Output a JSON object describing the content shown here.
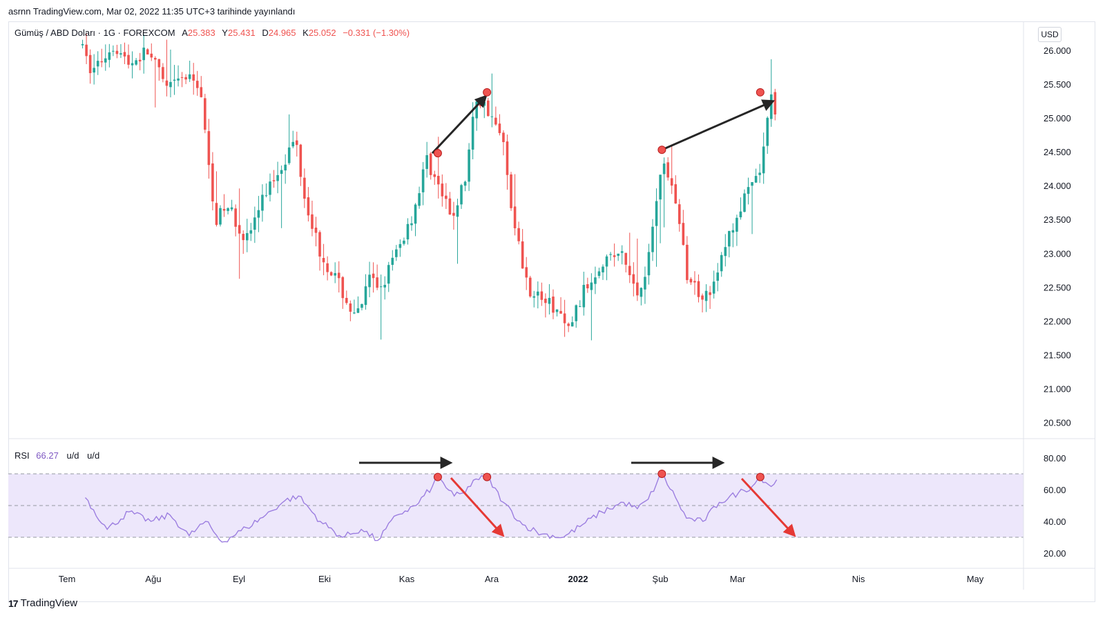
{
  "header": {
    "published": "asrnn TradingView.com, Mar 02, 2022 11:35 UTC+3 tarihinde yayınlandı"
  },
  "legend": {
    "symbol": "Gümüş / ABD Doları · 1G · FOREXCOM",
    "o_label": "A",
    "o_val": "25.383",
    "h_label": "Y",
    "h_val": "25.431",
    "l_label": "D",
    "l_val": "24.965",
    "c_label": "K",
    "c_val": "25.052",
    "change": "−0.331 (−1.30%)"
  },
  "currency": "USD",
  "rsi_legend": {
    "name": "RSI",
    "value": "66.27",
    "na1": "u/d",
    "na2": "u/d"
  },
  "footer": {
    "brand": "TradingView",
    "logo": "17"
  },
  "colors": {
    "up": "#26a69a",
    "down": "#ef5350",
    "rsi": "#9c7ee0",
    "band": "#ede7fb",
    "arrow_black": "#262626",
    "arrow_red": "#e53935"
  },
  "chart_data": [
    {
      "type": "candlestick",
      "series_name": "Gümüş / ABD Doları",
      "ylim": [
        20.25,
        26.4
      ],
      "y_ticks": [
        "26.000",
        "25.500",
        "25.000",
        "24.500",
        "24.000",
        "23.500",
        "23.000",
        "22.500",
        "22.000",
        "21.500",
        "21.000",
        "20.500"
      ],
      "x_ticks": [
        "Tem",
        "Ağu",
        "Eyl",
        "Eki",
        "Kas",
        "Ara",
        "2022",
        "Şub",
        "Mar",
        "Nis",
        "May"
      ],
      "close_path": [
        [
          "2021-06-21",
          26.0
        ],
        [
          "2021-06-24",
          25.7
        ],
        [
          "2021-06-29",
          25.9
        ],
        [
          "2021-07-02",
          26.1
        ],
        [
          "2021-07-08",
          25.8
        ],
        [
          "2021-07-15",
          26.0
        ],
        [
          "2021-07-22",
          25.4
        ],
        [
          "2021-07-28",
          25.6
        ],
        [
          "2021-08-03",
          25.5
        ],
        [
          "2021-08-06",
          24.3
        ],
        [
          "2021-08-09",
          23.5
        ],
        [
          "2021-08-13",
          23.7
        ],
        [
          "2021-08-20",
          23.2
        ],
        [
          "2021-08-27",
          23.9
        ],
        [
          "2021-09-03",
          24.4
        ],
        [
          "2021-09-07",
          24.7
        ],
        [
          "2021-09-10",
          23.9
        ],
        [
          "2021-09-16",
          23.0
        ],
        [
          "2021-09-22",
          22.6
        ],
        [
          "2021-09-29",
          22.0
        ],
        [
          "2021-10-04",
          22.6
        ],
        [
          "2021-10-08",
          22.5
        ],
        [
          "2021-10-15",
          23.1
        ],
        [
          "2021-10-20",
          23.6
        ],
        [
          "2021-10-25",
          24.4
        ],
        [
          "2021-10-29",
          24.0
        ],
        [
          "2021-11-03",
          23.5
        ],
        [
          "2021-11-08",
          24.1
        ],
        [
          "2021-11-12",
          25.3
        ],
        [
          "2021-11-17",
          25.1
        ],
        [
          "2021-11-22",
          24.6
        ],
        [
          "2021-11-26",
          23.4
        ],
        [
          "2021-12-01",
          22.5
        ],
        [
          "2021-12-07",
          22.3
        ],
        [
          "2021-12-13",
          22.1
        ],
        [
          "2021-12-15",
          21.8
        ],
        [
          "2021-12-21",
          22.4
        ],
        [
          "2021-12-28",
          22.9
        ],
        [
          "2022-01-04",
          23.0
        ],
        [
          "2022-01-10",
          22.4
        ],
        [
          "2022-01-14",
          22.9
        ],
        [
          "2022-01-19",
          24.4
        ],
        [
          "2022-01-24",
          23.8
        ],
        [
          "2022-01-28",
          22.7
        ],
        [
          "2022-02-02",
          22.4
        ],
        [
          "2022-02-07",
          22.5
        ],
        [
          "2022-02-11",
          23.1
        ],
        [
          "2022-02-16",
          23.6
        ],
        [
          "2022-02-21",
          24.0
        ],
        [
          "2022-02-24",
          24.2
        ],
        [
          "2022-02-28",
          25.3
        ],
        [
          "2022-03-02",
          25.05
        ]
      ],
      "last_candle": {
        "date": "2022-03-02",
        "open": 25.383,
        "high": 25.431,
        "low": 24.965,
        "close": 25.052
      },
      "marked_highs": [
        {
          "date": "2021-10-29",
          "price": 24.48
        },
        {
          "date": "2021-11-16",
          "price": 25.38
        },
        {
          "date": "2022-01-19",
          "price": 24.53
        },
        {
          "date": "2022-02-24",
          "price": 25.38
        }
      ]
    },
    {
      "type": "line",
      "series_name": "RSI",
      "last_value": 66.27,
      "ylim": [
        10,
        88
      ],
      "y_ticks": [
        "80.00",
        "60.00",
        "40.00",
        "20.00"
      ],
      "bands": [
        30,
        50,
        70
      ],
      "points": [
        [
          "2021-06-22",
          55
        ],
        [
          "2021-06-30",
          35
        ],
        [
          "2021-07-08",
          46
        ],
        [
          "2021-07-16",
          40
        ],
        [
          "2021-07-23",
          44
        ],
        [
          "2021-07-30",
          31
        ],
        [
          "2021-08-05",
          40
        ],
        [
          "2021-08-11",
          27
        ],
        [
          "2021-08-20",
          36
        ],
        [
          "2021-08-27",
          44
        ],
        [
          "2021-09-03",
          53
        ],
        [
          "2021-09-08",
          56
        ],
        [
          "2021-09-16",
          40
        ],
        [
          "2021-09-24",
          30
        ],
        [
          "2021-10-01",
          35
        ],
        [
          "2021-10-07",
          28
        ],
        [
          "2021-10-14",
          44
        ],
        [
          "2021-10-21",
          50
        ],
        [
          "2021-10-27",
          62
        ],
        [
          "2021-10-29",
          68
        ],
        [
          "2021-11-04",
          56
        ],
        [
          "2021-11-08",
          58
        ],
        [
          "2021-11-11",
          66
        ],
        [
          "2021-11-16",
          68
        ],
        [
          "2021-11-22",
          52
        ],
        [
          "2021-11-29",
          38
        ],
        [
          "2021-12-06",
          32
        ],
        [
          "2021-12-14",
          30
        ],
        [
          "2021-12-21",
          38
        ],
        [
          "2021-12-28",
          46
        ],
        [
          "2022-01-05",
          52
        ],
        [
          "2022-01-10",
          48
        ],
        [
          "2022-01-14",
          54
        ],
        [
          "2022-01-19",
          70
        ],
        [
          "2022-01-24",
          55
        ],
        [
          "2022-01-28",
          42
        ],
        [
          "2022-02-03",
          40
        ],
        [
          "2022-02-09",
          52
        ],
        [
          "2022-02-16",
          58
        ],
        [
          "2022-02-21",
          62
        ],
        [
          "2022-02-24",
          68
        ],
        [
          "2022-02-28",
          62
        ],
        [
          "2022-03-02",
          66.27
        ]
      ],
      "marked_peaks": [
        {
          "date": "2021-10-29",
          "value": 68
        },
        {
          "date": "2021-11-16",
          "value": 68
        },
        {
          "date": "2022-01-19",
          "value": 70
        },
        {
          "date": "2022-02-24",
          "value": 68
        }
      ]
    }
  ]
}
